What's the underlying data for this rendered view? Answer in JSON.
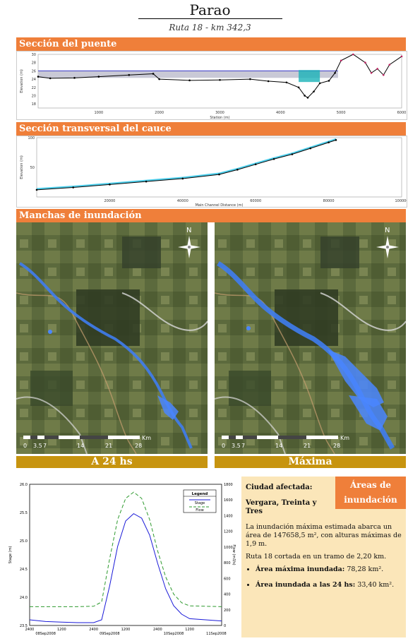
{
  "header": {
    "title": "Parao",
    "subtitle": "Ruta 18 - km 342,3"
  },
  "sections": {
    "bridge": "Sección del puente",
    "channel": "Sección transversal del cauce",
    "flood": "Manchas de inundación"
  },
  "maps": {
    "left_caption": "A 24 hs",
    "right_caption": "Máxima",
    "north": "N",
    "scale_labels": [
      "0",
      "3.5",
      "7",
      "14",
      "21",
      "28"
    ],
    "scale_unit": "Km"
  },
  "hydrograph_legend": {
    "title": "Legend",
    "stage": "Stage",
    "flow": "Flow"
  },
  "info": {
    "tag_line1": "Áreas de",
    "tag_line2": "inundación",
    "city_label": "Ciudad afectada:",
    "city_value": "Vergara, Treinta y Tres",
    "para1": "La inundación máxima estimada abarca un área de 147658,5 m², con alturas máximas de 1,9 m.",
    "para2": "Ruta 18 cortada en un tramo de 2,20 km.",
    "bullet1_label": "Área máxima inundada:",
    "bullet1_value": "78,28 km².",
    "bullet2_label": "Área inundada a las 24 hs:",
    "bullet2_value": "33,40 km²."
  },
  "chart_data": [
    {
      "type": "line",
      "title": "Sección del puente",
      "xlabel": "Station (m)",
      "ylabel": "Elevation (m)",
      "x_ticks": [
        1000,
        2000,
        3000,
        4000,
        5000,
        6000
      ],
      "y_ticks": [
        18,
        20,
        22,
        24,
        26,
        28,
        30
      ],
      "xlim": [
        0,
        6000
      ],
      "ylim": [
        17,
        30
      ],
      "water_surface": 26,
      "series": [
        {
          "name": "",
          "x": [
            0,
            200,
            600,
            1000,
            1500,
            1900,
            2000,
            2500,
            3000,
            3500,
            3800,
            4100,
            4300,
            4400,
            4450,
            4550,
            4650,
            4800,
            4900,
            5000,
            5200,
            5400,
            5500,
            5600,
            5700,
            5800,
            6000
          ],
          "y": [
            24.6,
            24.2,
            24.3,
            24.6,
            25.0,
            25.3,
            24.0,
            23.7,
            23.8,
            24.0,
            23.5,
            23.2,
            22.0,
            20.0,
            19.5,
            21.0,
            23.0,
            23.6,
            25.5,
            28.5,
            30.0,
            28.0,
            25.5,
            26.5,
            25.0,
            27.5,
            29.5
          ]
        }
      ]
    },
    {
      "type": "line",
      "title": "Sección transversal del cauce",
      "xlabel": "Main Channel Distance (m)",
      "ylabel": "Elevation (m)",
      "x_ticks": [
        20000,
        40000,
        60000,
        80000,
        100000
      ],
      "y_ticks": [
        50,
        100
      ],
      "xlim": [
        0,
        100000
      ],
      "ylim": [
        0,
        100
      ],
      "series": [
        {
          "name": "",
          "x": [
            0,
            10000,
            20000,
            30000,
            40000,
            50000,
            55000,
            60000,
            65000,
            70000,
            75000,
            80000,
            82000
          ],
          "y": [
            12,
            16,
            21,
            26,
            31,
            38,
            46,
            55,
            64,
            72,
            82,
            92,
            96
          ]
        }
      ]
    },
    {
      "type": "line",
      "title": "",
      "xlabel": "",
      "ylabel": "Stage (m)",
      "ylabel_right": "Flow (m3/s)",
      "x_ticks": [
        "2400",
        "1200",
        "2400",
        "1200",
        "2400",
        "1200"
      ],
      "x_dates": [
        "08Sep2008",
        "09Sep2008",
        "10Sep2008",
        "11Sep2008"
      ],
      "y_ticks": [
        23.5,
        24.0,
        24.5,
        25.0,
        25.5,
        26.0
      ],
      "y_right_ticks": [
        0,
        200,
        400,
        600,
        800,
        1000,
        1200,
        1400,
        1600,
        1800
      ],
      "ylim": [
        23.5,
        26.0
      ],
      "ylim_right": [
        0,
        1800
      ],
      "series": [
        {
          "name": "Stage",
          "x": [
            0,
            6,
            12,
            18,
            24,
            27,
            30,
            33,
            36,
            39,
            42,
            45,
            48,
            51,
            54,
            57,
            60,
            66,
            72
          ],
          "y": [
            23.6,
            23.57,
            23.56,
            23.55,
            23.55,
            23.6,
            24.2,
            24.9,
            25.35,
            25.48,
            25.4,
            25.1,
            24.6,
            24.15,
            23.85,
            23.7,
            23.62,
            23.6,
            23.58
          ]
        },
        {
          "name": "Flow",
          "x": [
            0,
            6,
            12,
            18,
            24,
            27,
            30,
            33,
            36,
            39,
            42,
            45,
            48,
            51,
            54,
            57,
            60,
            66,
            72
          ],
          "y": [
            240,
            240,
            240,
            240,
            245,
            300,
            850,
            1350,
            1620,
            1700,
            1620,
            1350,
            950,
            620,
            400,
            290,
            250,
            245,
            240
          ]
        }
      ]
    }
  ]
}
